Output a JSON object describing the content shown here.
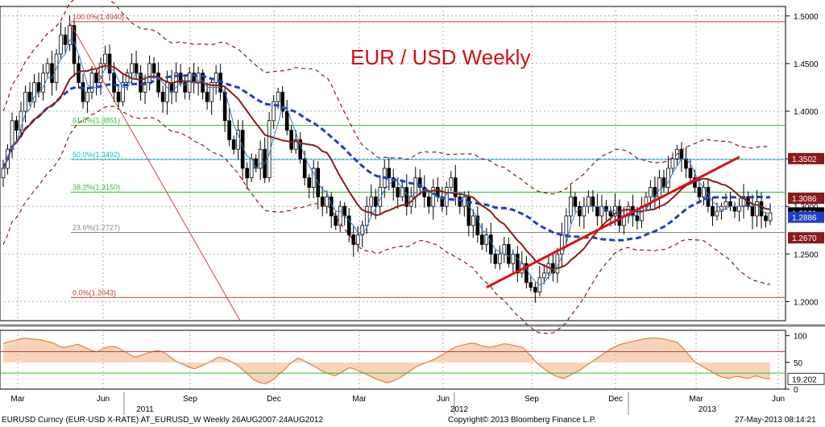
{
  "chart_data": [
    {
      "type": "candlestick",
      "title": "EUR / USD Weekly",
      "y_axis_side": "right",
      "ylim": [
        1.18,
        1.51
      ],
      "yticks": [
        "1.5000",
        "1.4500",
        "1.4000",
        "1.3500",
        "1.3000",
        "1.2500",
        "1.2000"
      ],
      "x_month_labels": [
        "Mar",
        "Jun",
        "Sep",
        "Dec",
        "Mar",
        "Jun",
        "Sep",
        "Dec",
        "Mar",
        "Jun"
      ],
      "x_year_labels": [
        "2011",
        "2012",
        "2013"
      ],
      "grid": true,
      "fib_levels": [
        {
          "label": "100.0%(1.4940)",
          "value": 1.494,
          "color": "#c0392b"
        },
        {
          "label": "61.8%(1.3851)",
          "value": 1.3851,
          "color": "#2fbf2f"
        },
        {
          "label": "50.0%(1.3492)",
          "value": 1.3492,
          "color": "#00b7e0"
        },
        {
          "label": "38.2%(1.3150)",
          "value": 1.315,
          "color": "#2fbf2f"
        },
        {
          "label": "23.6%(1.2727)",
          "value": 1.2727,
          "color": "#888888"
        },
        {
          "label": "0.0%(1.2043)",
          "value": 1.2043,
          "color": "#c0392b"
        }
      ],
      "price_tags": [
        {
          "label": "1.3502",
          "value": 1.3502,
          "color": "#8b1a1a"
        },
        {
          "label": "1.3086",
          "value": 1.3086,
          "color": "#8b1a1a"
        },
        {
          "label": "1.2931",
          "value": 1.2931,
          "color": "#000000"
        },
        {
          "label": "1.2886",
          "value": 1.2886,
          "color": "#1f3fbf"
        },
        {
          "label": "1.2670",
          "value": 1.267,
          "color": "#8b1a1a"
        }
      ],
      "candles_close": [
        1.34,
        1.36,
        1.39,
        1.38,
        1.4,
        1.42,
        1.41,
        1.43,
        1.42,
        1.44,
        1.45,
        1.43,
        1.46,
        1.48,
        1.47,
        1.49,
        1.45,
        1.43,
        1.41,
        1.42,
        1.44,
        1.43,
        1.45,
        1.46,
        1.44,
        1.42,
        1.41,
        1.43,
        1.44,
        1.45,
        1.44,
        1.42,
        1.43,
        1.45,
        1.44,
        1.42,
        1.41,
        1.43,
        1.42,
        1.44,
        1.43,
        1.42,
        1.44,
        1.43,
        1.44,
        1.42,
        1.41,
        1.43,
        1.44,
        1.42,
        1.39,
        1.37,
        1.36,
        1.38,
        1.34,
        1.33,
        1.35,
        1.34,
        1.36,
        1.33,
        1.39,
        1.41,
        1.42,
        1.4,
        1.38,
        1.36,
        1.37,
        1.35,
        1.33,
        1.32,
        1.34,
        1.31,
        1.3,
        1.31,
        1.29,
        1.28,
        1.3,
        1.29,
        1.27,
        1.26,
        1.27,
        1.28,
        1.3,
        1.31,
        1.3,
        1.32,
        1.34,
        1.33,
        1.32,
        1.31,
        1.32,
        1.3,
        1.31,
        1.33,
        1.32,
        1.31,
        1.3,
        1.32,
        1.31,
        1.3,
        1.32,
        1.33,
        1.31,
        1.3,
        1.31,
        1.28,
        1.29,
        1.27,
        1.26,
        1.27,
        1.25,
        1.24,
        1.25,
        1.26,
        1.24,
        1.25,
        1.23,
        1.24,
        1.22,
        1.215,
        1.21,
        1.225,
        1.23,
        1.24,
        1.23,
        1.25,
        1.27,
        1.29,
        1.31,
        1.3,
        1.29,
        1.3,
        1.31,
        1.3,
        1.29,
        1.3,
        1.295,
        1.29,
        1.3,
        1.28,
        1.29,
        1.3,
        1.29,
        1.285,
        1.3,
        1.31,
        1.32,
        1.31,
        1.33,
        1.32,
        1.34,
        1.35,
        1.36,
        1.35,
        1.34,
        1.33,
        1.32,
        1.31,
        1.32,
        1.3,
        1.29,
        1.295,
        1.3,
        1.305,
        1.3,
        1.295,
        1.3,
        1.31,
        1.3,
        1.29,
        1.305,
        1.29,
        1.285,
        1.2931
      ],
      "series": [
        {
          "name": "",
          "values": "moving-average-thin",
          "color": "#3a7fc4"
        },
        {
          "name": "",
          "values": "moving-average-medium",
          "color": "#8b1a1a"
        },
        {
          "name": "",
          "values": "moving-average-long-dashed",
          "color": "#1f3fbf"
        }
      ],
      "oscillator": {
        "ylim": [
          0,
          110
        ],
        "yticks": [
          "100",
          "50",
          "0"
        ],
        "levels": [
          70,
          30
        ],
        "last_value_label": "19.202",
        "values": [
          85,
          88,
          90,
          92,
          95,
          95,
          94,
          93,
          92,
          90,
          88,
          85,
          80,
          78,
          80,
          82,
          84,
          80,
          76,
          72,
          70,
          74,
          78,
          80,
          79,
          75,
          70,
          65,
          60,
          62,
          65,
          68,
          70,
          72,
          70,
          65,
          58,
          52,
          48,
          44,
          40,
          38,
          42,
          46,
          50,
          55,
          60,
          58,
          55,
          50,
          45,
          38,
          30,
          22,
          15,
          12,
          10,
          14,
          20,
          28,
          35,
          45,
          52,
          58,
          55,
          50,
          45,
          40,
          35,
          30,
          28,
          25,
          30,
          35,
          40,
          38,
          34,
          30,
          26,
          22,
          18,
          15,
          12,
          14,
          18,
          22,
          28,
          34,
          40,
          45,
          48,
          52,
          55,
          60,
          65,
          70,
          75,
          80,
          82,
          84,
          86,
          85,
          82,
          80,
          78,
          80,
          82,
          85,
          84,
          82,
          80,
          78,
          70,
          60,
          50,
          42,
          36,
          30,
          25,
          22,
          20,
          25,
          30,
          34,
          40,
          46,
          52,
          58,
          64,
          70,
          76,
          80,
          84,
          86,
          88,
          90,
          92,
          94,
          95,
          96,
          95,
          94,
          92,
          90,
          88,
          80,
          70,
          60,
          50,
          45,
          40,
          35,
          30,
          25,
          22,
          20,
          22,
          24,
          22,
          20,
          22,
          25,
          22,
          20,
          19.202
        ]
      },
      "footer": {
        "left": "EURUSD Curncy (EUR-USD X-RATE) AT_EURUSD_W  Weekly 26AUG2007-24AUG2012",
        "center": "Copyright© 2013 Bloomberg Finance L.P.",
        "right": "27-May-2013 08:14:21"
      }
    }
  ]
}
